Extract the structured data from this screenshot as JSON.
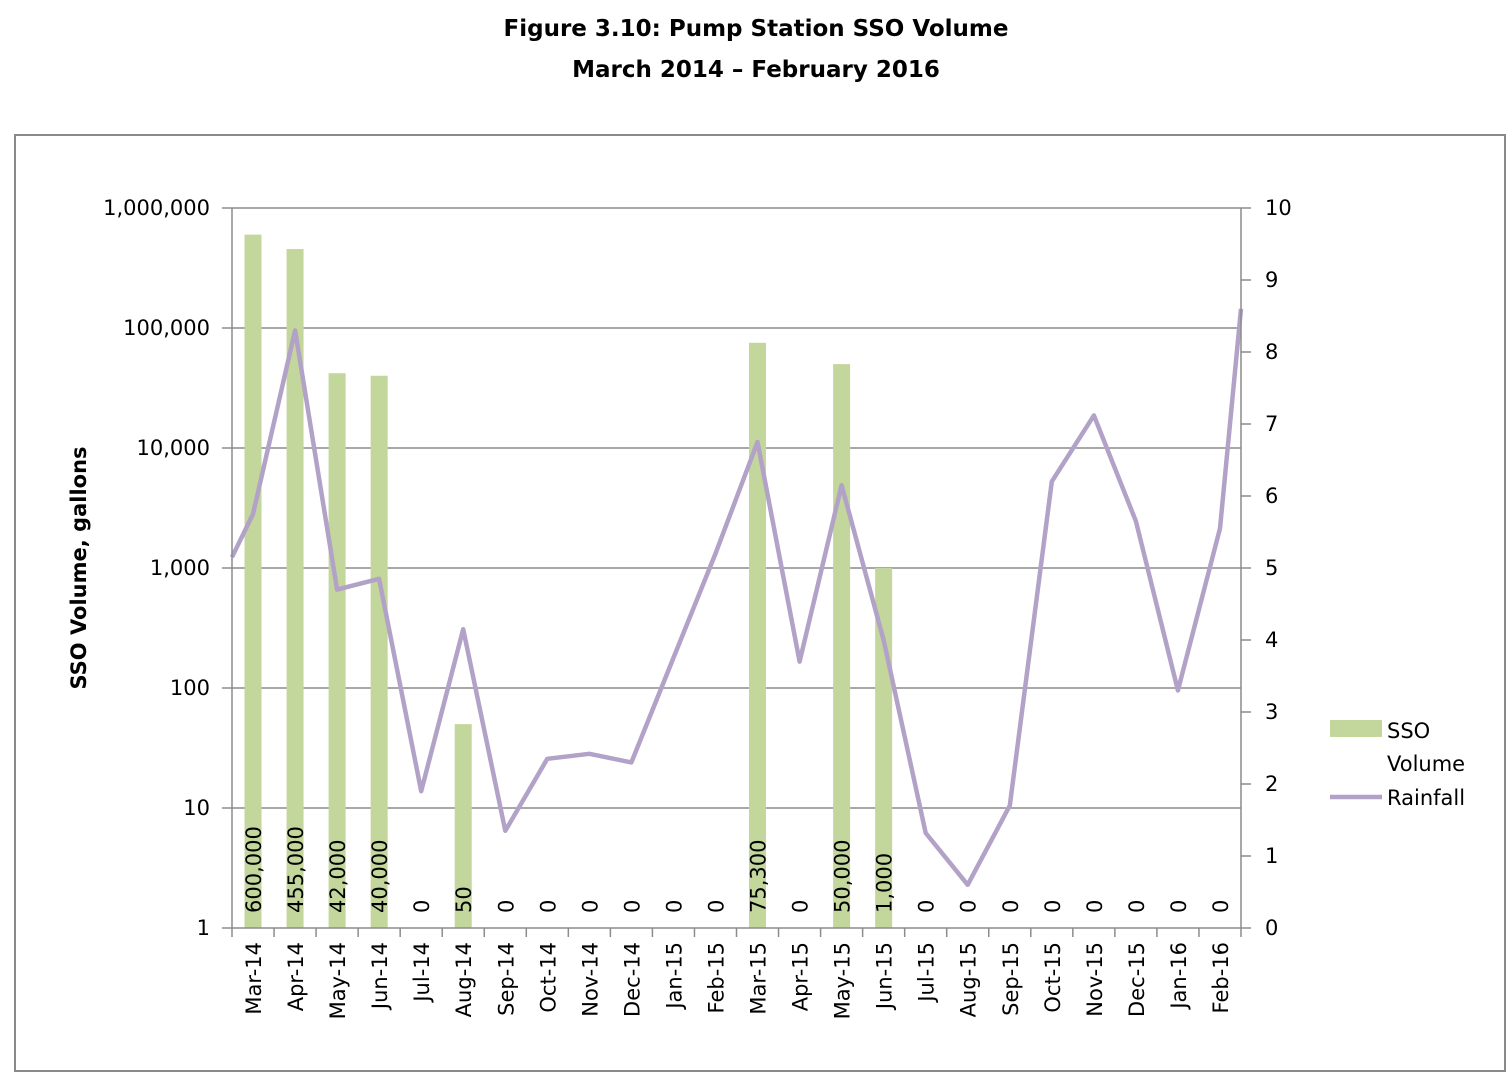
{
  "chart_data": {
    "type": "bar+line",
    "title": "Figure 3.10:  Pump Station SSO Volume",
    "subtitle": "March 2014 – February 2016",
    "ylabel": "SSO Volume, gallons",
    "y2label": "",
    "xlabel": "",
    "yscale": "log",
    "ylim": [
      1,
      1000000
    ],
    "y2lim": [
      0,
      10
    ],
    "grid": true,
    "legend_position": "right",
    "y_ticks": [
      "1",
      "10",
      "100",
      "1,000",
      "10,000",
      "100,000",
      "1,000,000"
    ],
    "y2_ticks": [
      "0",
      "1",
      "2",
      "3",
      "4",
      "5",
      "6",
      "7",
      "8",
      "9",
      "10"
    ],
    "categories": [
      "Mar-14",
      "Apr-14",
      "May-14",
      "Jun-14",
      "Jul-14",
      "Aug-14",
      "Sep-14",
      "Oct-14",
      "Nov-14",
      "Dec-14",
      "Jan-15",
      "Feb-15",
      "Mar-15",
      "Apr-15",
      "May-15",
      "Jun-15",
      "Jul-15",
      "Aug-15",
      "Sep-15",
      "Oct-15",
      "Nov-15",
      "Dec-15",
      "Jan-16",
      "Feb-16"
    ],
    "series": [
      {
        "name": "SSO Volume",
        "type": "bar",
        "axis": "left",
        "color": "#c3d69b",
        "values": [
          600000,
          455000,
          42000,
          40000,
          0,
          50,
          0,
          0,
          0,
          0,
          0,
          0,
          75300,
          0,
          50000,
          1000,
          0,
          0,
          0,
          0,
          0,
          0,
          0,
          0
        ],
        "labels": [
          "600,000",
          "455,000",
          "42,000",
          "40,000",
          "0",
          "50",
          "0",
          "0",
          "0",
          "0",
          "0",
          "0",
          "75,300",
          "0",
          "50,000",
          "1,000",
          "0",
          "0",
          "0",
          "0",
          "0",
          "0",
          "0",
          "0"
        ]
      },
      {
        "name": "Rainfall",
        "type": "line",
        "axis": "right",
        "color": "#b2a2c7",
        "start_value": 5.15,
        "end_value": 8.6,
        "values": [
          5.75,
          8.3,
          4.7,
          4.85,
          1.9,
          4.15,
          1.35,
          2.35,
          2.42,
          2.3,
          3.75,
          5.2,
          6.75,
          3.7,
          6.15,
          4.0,
          1.32,
          0.6,
          1.7,
          6.2,
          7.12,
          5.65,
          3.3,
          5.55
        ]
      }
    ],
    "legend": [
      {
        "label_line1": "SSO",
        "label_line2": "Volume",
        "color": "#c3d69b"
      },
      {
        "label_line1": "Rainfall",
        "label_line2": "",
        "color": "#b2a2c7"
      }
    ]
  }
}
